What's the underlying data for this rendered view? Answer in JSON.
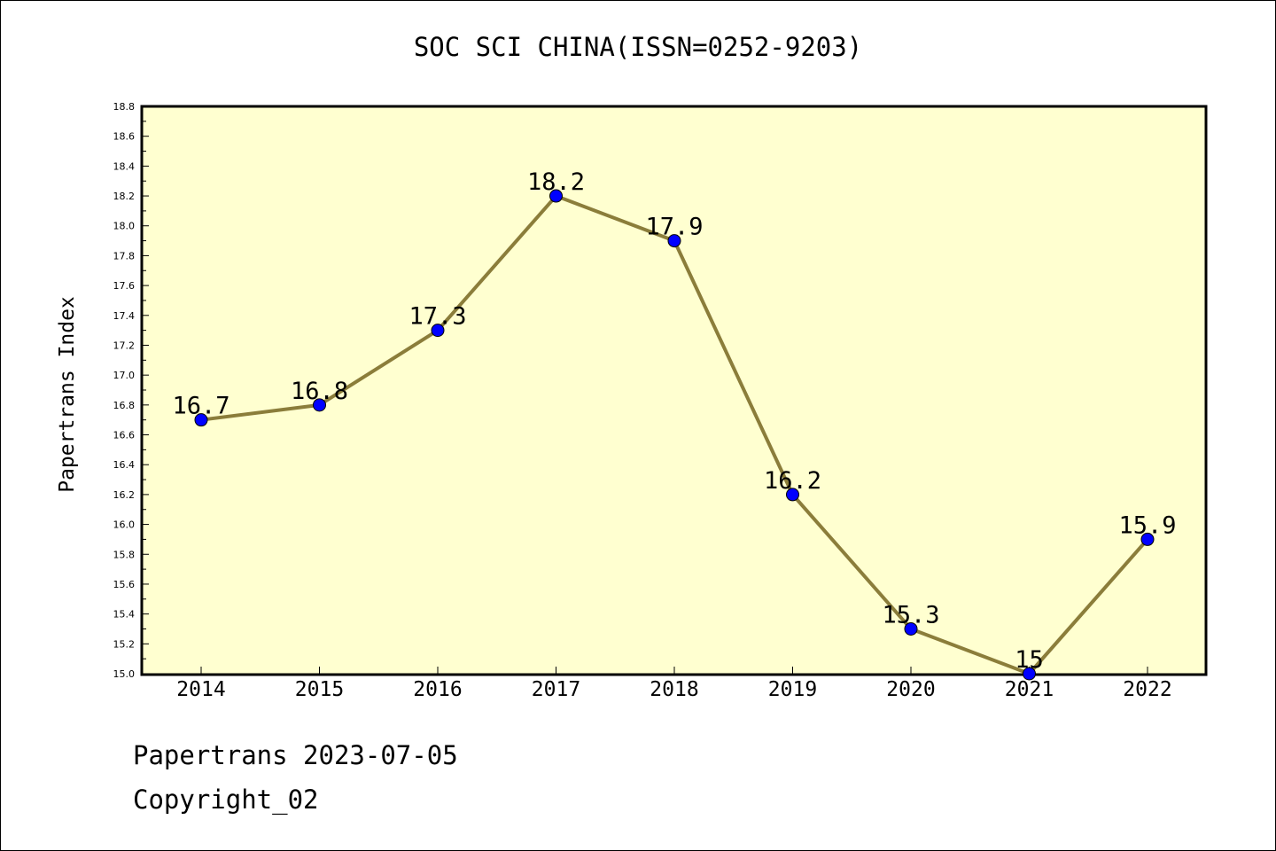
{
  "chart_data": {
    "type": "line",
    "title": "SOC SCI CHINA(ISSN=0252-9203)",
    "xlabel": "",
    "ylabel": "Papertrans Index",
    "categories": [
      "2014",
      "2015",
      "2016",
      "2017",
      "2018",
      "2019",
      "2020",
      "2021",
      "2022"
    ],
    "series": [
      {
        "values": [
          16.7,
          16.8,
          17.3,
          18.2,
          17.9,
          16.2,
          15.3,
          15,
          15.9
        ]
      }
    ],
    "data_labels": [
      "16.7",
      "16.8",
      "17.3",
      "18.2",
      "17.9",
      "16.2",
      "15.3",
      "15",
      "15.9"
    ],
    "ylim": [
      15.0,
      18.8
    ],
    "yticks": [
      "15.0",
      "15.2",
      "15.4",
      "15.6",
      "15.8",
      "16.0",
      "16.2",
      "16.4",
      "16.6",
      "16.8",
      "17.0",
      "17.2",
      "17.4",
      "17.6",
      "17.8",
      "18.0",
      "18.2",
      "18.4",
      "18.6",
      "18.8"
    ],
    "grid": false,
    "colors": {
      "plot_background": "#ffffd0",
      "line": "#8b7d3a",
      "marker": "#0000ff"
    }
  },
  "footer": {
    "line1": "Papertrans 2023-07-05",
    "line2": "Copyright_02"
  }
}
